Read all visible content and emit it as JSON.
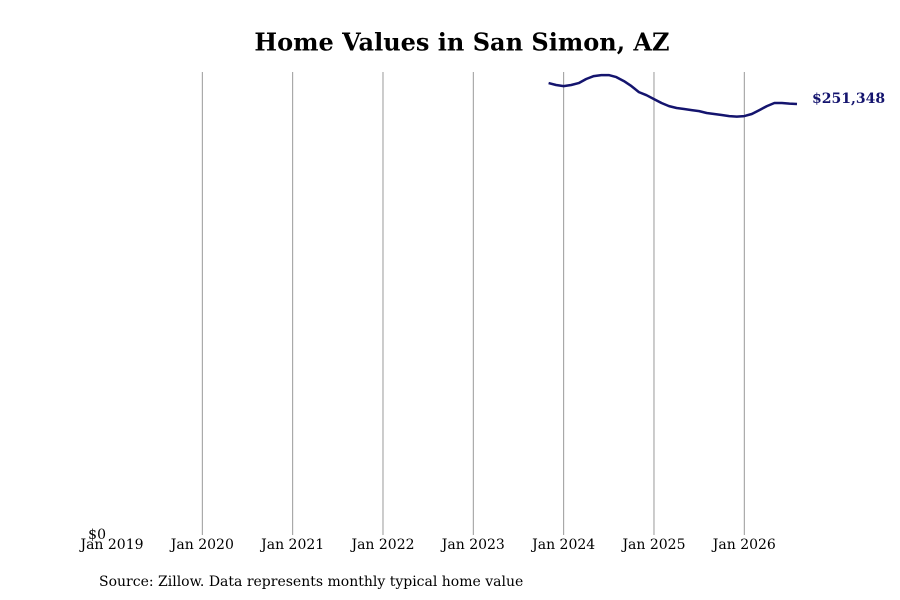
{
  "chart_data": {
    "type": "line",
    "title": "Home Values in San Simon, AZ",
    "source": "Source: Zillow. Data represents monthly typical home value",
    "x": [
      "2023-11",
      "2023-12",
      "2024-01",
      "2024-02",
      "2024-03",
      "2024-04",
      "2024-05",
      "2024-06",
      "2024-07",
      "2024-08",
      "2024-09",
      "2024-10",
      "2024-11",
      "2024-12",
      "2025-01",
      "2025-02",
      "2025-03",
      "2025-04",
      "2025-05",
      "2025-06",
      "2025-07",
      "2025-08",
      "2025-09",
      "2025-10",
      "2025-11",
      "2025-12",
      "2026-01",
      "2026-02",
      "2026-03",
      "2026-04",
      "2026-05",
      "2026-06",
      "2026-07",
      "2026-08"
    ],
    "series": [
      {
        "name": "San Simon, AZ",
        "color": "#14146e",
        "values": [
          263500,
          262400,
          261800,
          262400,
          263500,
          265900,
          267600,
          268200,
          268200,
          267000,
          264700,
          261800,
          258300,
          256500,
          254200,
          251900,
          250100,
          249000,
          248400,
          247800,
          247200,
          246100,
          245500,
          244900,
          244300,
          244000,
          244300,
          245500,
          247800,
          250100,
          251900,
          251900,
          251600,
          251348
        ]
      }
    ],
    "end_label": "$251,348",
    "xlim": [
      "2019-01",
      "2026-08"
    ],
    "xticks": [
      {
        "value": "2019-01",
        "label": "Jan 2019"
      },
      {
        "value": "2020-01",
        "label": "Jan 2020"
      },
      {
        "value": "2021-01",
        "label": "Jan 2021"
      },
      {
        "value": "2022-01",
        "label": "Jan 2022"
      },
      {
        "value": "2023-01",
        "label": "Jan 2023"
      },
      {
        "value": "2024-01",
        "label": "Jan 2024"
      },
      {
        "value": "2025-01",
        "label": "Jan 2025"
      },
      {
        "value": "2026-01",
        "label": "Jan 2026"
      }
    ],
    "ylim": [
      0,
      270000
    ],
    "yticks": [
      {
        "value": 0,
        "label": "$0"
      }
    ],
    "grid": true
  }
}
